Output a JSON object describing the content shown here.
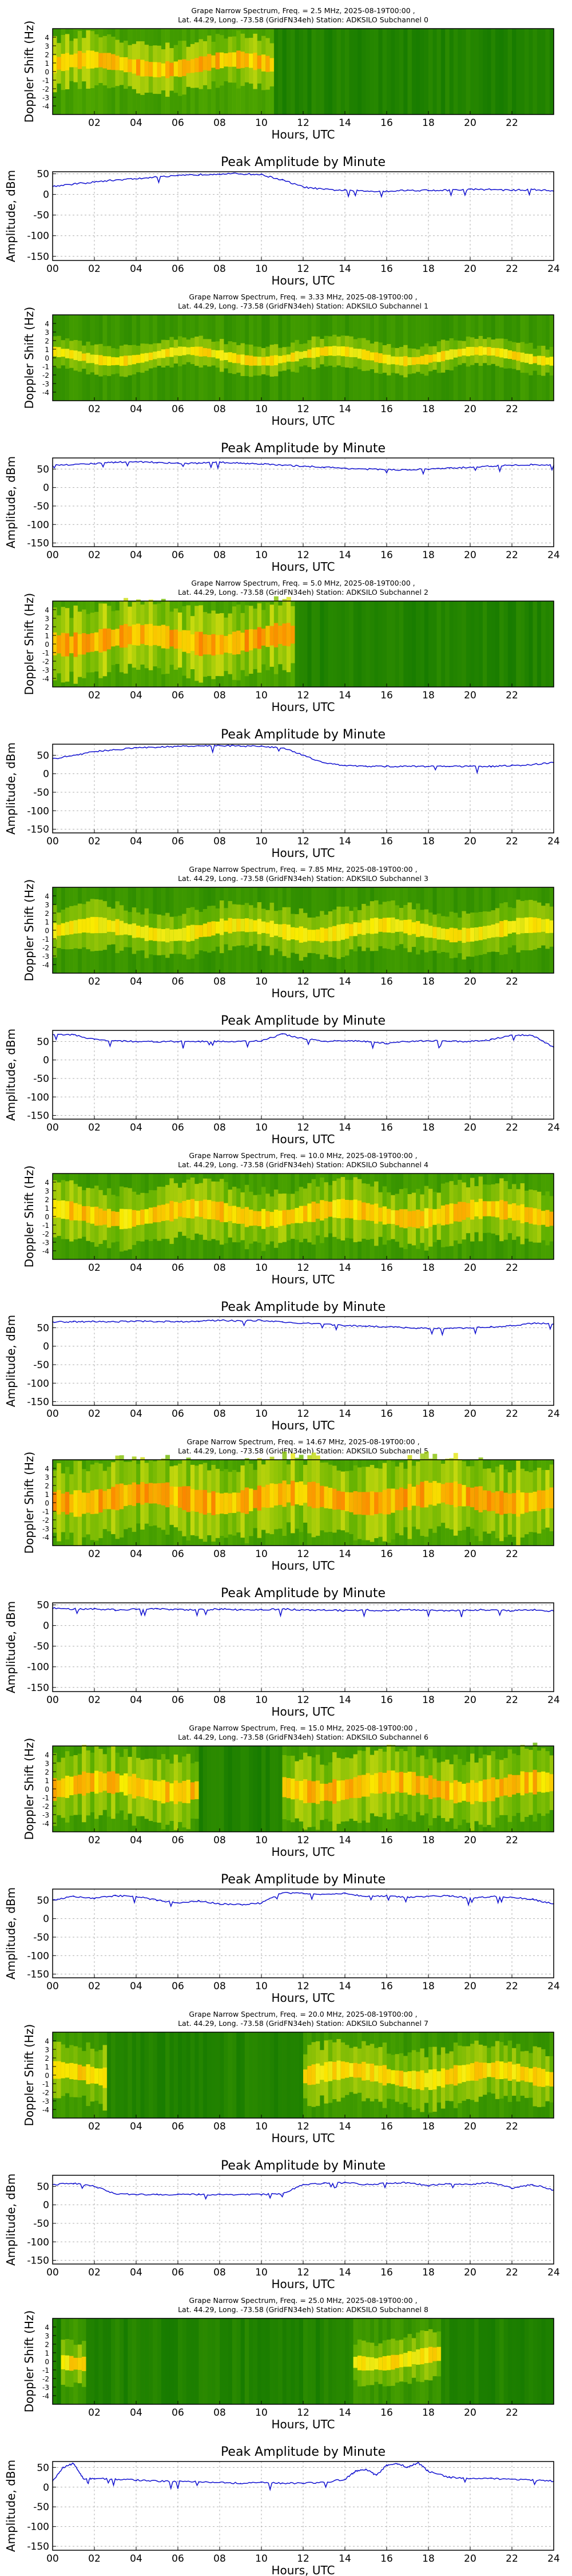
{
  "chart_data": [
    {
      "kind": "spectrum",
      "type": "heatmap",
      "title": "Grape Narrow Spectrum, Freq. = 2.5 MHz, 2025-08-19T00:00 ,",
      "subtitle": "Lat.  44.29, Long. -73.58 (GridFN34eh) Station: ADKSILO Subchannel 0",
      "xlabel": "Hours, UTC",
      "ylabel": "Doppler Shift (Hz)",
      "xticks": [
        "02",
        "04",
        "06",
        "08",
        "10",
        "12",
        "14",
        "16",
        "18",
        "20",
        "22"
      ],
      "yticks": [
        "4",
        "3",
        "2",
        "1",
        "0",
        "-1",
        "-2",
        "-3",
        "-4"
      ],
      "xlim": [
        0,
        24
      ],
      "ylim": [
        -5,
        5
      ],
      "active": [
        [
          0,
          10.5
        ]
      ],
      "activity_level": [
        0.8
      ],
      "band_center": 0.8,
      "band_width": 0.9
    },
    {
      "kind": "amplitude",
      "type": "line",
      "title": "Peak Amplitude by Minute",
      "xlabel": "Hours, UTC",
      "ylabel": "Amplitude, dBm",
      "xlim": [
        0,
        24
      ],
      "ylim": [
        -160,
        55
      ],
      "xticks": [
        "00",
        "02",
        "04",
        "06",
        "08",
        "10",
        "12",
        "14",
        "16",
        "18",
        "20",
        "22",
        "24"
      ],
      "yticks": [
        "50",
        "0",
        "-50",
        "-100",
        "-150"
      ],
      "x": [
        0,
        1,
        2,
        3,
        4,
        5,
        6,
        7,
        8,
        9,
        10,
        11,
        12,
        13,
        14,
        15,
        16,
        17,
        18,
        19,
        20,
        21,
        22,
        23,
        24
      ],
      "y": [
        20,
        25,
        30,
        35,
        38,
        42,
        45,
        48,
        50,
        50,
        48,
        35,
        18,
        12,
        10,
        8,
        8,
        10,
        10,
        10,
        12,
        12,
        10,
        12,
        8
      ]
    },
    {
      "kind": "spectrum",
      "type": "heatmap",
      "title": "Grape Narrow Spectrum, Freq. = 3.33 MHz, 2025-08-19T00:00 ,",
      "subtitle": "Lat.  44.29, Long. -73.58 (GridFN34eh) Station: ADKSILO Subchannel 1",
      "xlabel": "Hours, UTC",
      "ylabel": "Doppler Shift (Hz)",
      "xticks": [
        "02",
        "04",
        "06",
        "08",
        "10",
        "12",
        "14",
        "16",
        "18",
        "20",
        "22"
      ],
      "yticks": [
        "4",
        "3",
        "2",
        "1",
        "0",
        "-1",
        "-2",
        "-3",
        "-4"
      ],
      "xlim": [
        0,
        24
      ],
      "ylim": [
        -5,
        5
      ],
      "active": [
        [
          0,
          24
        ]
      ],
      "activity_level": [
        0.55
      ],
      "band_center": 0.2,
      "band_width": 0.5
    },
    {
      "kind": "amplitude",
      "type": "line",
      "title": "Peak Amplitude by Minute",
      "xlabel": "Hours, UTC",
      "ylabel": "Amplitude, dBm",
      "xlim": [
        0,
        24
      ],
      "ylim": [
        -160,
        80
      ],
      "xticks": [
        "00",
        "02",
        "04",
        "06",
        "08",
        "10",
        "12",
        "14",
        "16",
        "18",
        "20",
        "22",
        "24"
      ],
      "yticks": [
        "50",
        "0",
        "-50",
        "-100",
        "-150"
      ],
      "x": [
        0,
        1,
        2,
        3,
        4,
        5,
        6,
        7,
        8,
        9,
        10,
        11,
        12,
        13,
        14,
        15,
        16,
        17,
        18,
        19,
        20,
        21,
        22,
        23,
        24
      ],
      "y": [
        60,
        62,
        65,
        68,
        70,
        68,
        65,
        66,
        68,
        66,
        64,
        60,
        58,
        55,
        52,
        50,
        48,
        48,
        50,
        52,
        55,
        58,
        60,
        62,
        60
      ]
    },
    {
      "kind": "spectrum",
      "type": "heatmap",
      "title": "Grape Narrow Spectrum, Freq. = 5.0 MHz, 2025-08-19T00:00 ,",
      "subtitle": "Lat.  44.29, Long. -73.58 (GridFN34eh) Station: ADKSILO Subchannel 2",
      "xlabel": "Hours, UTC",
      "ylabel": "Doppler Shift (Hz)",
      "xticks": [
        "02",
        "04",
        "06",
        "08",
        "10",
        "12",
        "14",
        "16",
        "18",
        "20",
        "22"
      ],
      "yticks": [
        "4",
        "3",
        "2",
        "1",
        "0",
        "-1",
        "-2",
        "-3",
        "-4"
      ],
      "xlim": [
        0,
        24
      ],
      "ylim": [
        -5,
        5
      ],
      "active": [
        [
          0,
          11.5
        ]
      ],
      "activity_level": [
        0.9
      ],
      "band_center": 0.5,
      "band_width": 1.2
    },
    {
      "kind": "amplitude",
      "type": "line",
      "title": "Peak Amplitude by Minute",
      "xlabel": "Hours, UTC",
      "ylabel": "Amplitude, dBm",
      "xlim": [
        0,
        24
      ],
      "ylim": [
        -160,
        80
      ],
      "xticks": [
        "00",
        "02",
        "04",
        "06",
        "08",
        "10",
        "12",
        "14",
        "16",
        "18",
        "20",
        "22",
        "24"
      ],
      "yticks": [
        "50",
        "0",
        "-50",
        "-100",
        "-150"
      ],
      "x": [
        0,
        1,
        2,
        3,
        4,
        5,
        6,
        7,
        8,
        9,
        10,
        11,
        12,
        13,
        14,
        15,
        16,
        17,
        18,
        19,
        20,
        21,
        22,
        23,
        24
      ],
      "y": [
        40,
        50,
        60,
        65,
        70,
        72,
        74,
        75,
        76,
        75,
        74,
        70,
        50,
        30,
        22,
        20,
        20,
        20,
        20,
        20,
        20,
        20,
        22,
        25,
        30
      ]
    },
    {
      "kind": "spectrum",
      "type": "heatmap",
      "title": "Grape Narrow Spectrum, Freq. = 7.85 MHz, 2025-08-19T00:00 ,",
      "subtitle": "Lat.  44.29, Long. -73.58 (GridFN34eh) Station: ADKSILO Subchannel 3",
      "xlabel": "Hours, UTC",
      "ylabel": "Doppler Shift (Hz)",
      "xticks": [
        "02",
        "04",
        "06",
        "08",
        "10",
        "12",
        "14",
        "16",
        "18",
        "20",
        "22"
      ],
      "yticks": [
        "4",
        "3",
        "2",
        "1",
        "0",
        "-1",
        "-2",
        "-3",
        "-4"
      ],
      "xlim": [
        0,
        24
      ],
      "ylim": [
        -5,
        5
      ],
      "active": [
        [
          0,
          24
        ]
      ],
      "activity_level": [
        0.5
      ],
      "band_center": 0.0,
      "band_width": 0.8
    },
    {
      "kind": "amplitude",
      "type": "line",
      "title": "Peak Amplitude by Minute",
      "xlabel": "Hours, UTC",
      "ylabel": "Amplitude, dBm",
      "xlim": [
        0,
        24
      ],
      "ylim": [
        -160,
        80
      ],
      "xticks": [
        "00",
        "02",
        "04",
        "06",
        "08",
        "10",
        "12",
        "14",
        "16",
        "18",
        "20",
        "22",
        "24"
      ],
      "yticks": [
        "50",
        "0",
        "-50",
        "-100",
        "-150"
      ],
      "x": [
        0,
        1,
        2,
        3,
        4,
        5,
        6,
        7,
        8,
        9,
        10,
        11,
        12,
        13,
        14,
        15,
        16,
        17,
        18,
        19,
        20,
        21,
        22,
        23,
        24
      ],
      "y": [
        70,
        68,
        55,
        52,
        50,
        50,
        50,
        50,
        50,
        50,
        52,
        70,
        58,
        50,
        52,
        50,
        45,
        50,
        52,
        50,
        50,
        55,
        68,
        66,
        35
      ]
    },
    {
      "kind": "spectrum",
      "type": "heatmap",
      "title": "Grape Narrow Spectrum, Freq. = 10.0 MHz, 2025-08-19T00:00 ,",
      "subtitle": "Lat.  44.29, Long. -73.58 (GridFN34eh) Station: ADKSILO Subchannel 4",
      "xlabel": "Hours, UTC",
      "ylabel": "Doppler Shift (Hz)",
      "xticks": [
        "02",
        "04",
        "06",
        "08",
        "10",
        "12",
        "14",
        "16",
        "18",
        "20",
        "22"
      ],
      "yticks": [
        "4",
        "3",
        "2",
        "1",
        "0",
        "-1",
        "-2",
        "-3",
        "-4"
      ],
      "xlim": [
        0,
        24
      ],
      "ylim": [
        -5,
        5
      ],
      "active": [
        [
          0,
          24
        ]
      ],
      "activity_level": [
        0.7
      ],
      "band_center": 0.3,
      "band_width": 1.0
    },
    {
      "kind": "amplitude",
      "type": "line",
      "title": "Peak Amplitude by Minute",
      "xlabel": "Hours, UTC",
      "ylabel": "Amplitude, dBm",
      "xlim": [
        0,
        24
      ],
      "ylim": [
        -160,
        80
      ],
      "xticks": [
        "00",
        "02",
        "04",
        "06",
        "08",
        "10",
        "12",
        "14",
        "16",
        "18",
        "20",
        "22",
        "24"
      ],
      "yticks": [
        "50",
        "0",
        "-50",
        "-100",
        "-150"
      ],
      "x": [
        0,
        1,
        2,
        3,
        4,
        5,
        6,
        7,
        8,
        9,
        10,
        11,
        12,
        13,
        14,
        15,
        16,
        17,
        18,
        19,
        20,
        21,
        22,
        23,
        24
      ],
      "y": [
        65,
        66,
        67,
        66,
        68,
        67,
        66,
        68,
        70,
        68,
        70,
        65,
        62,
        60,
        55,
        55,
        52,
        50,
        48,
        48,
        50,
        52,
        55,
        62,
        60
      ]
    },
    {
      "kind": "spectrum",
      "type": "heatmap",
      "title": "Grape Narrow Spectrum, Freq. = 14.67 MHz, 2025-08-19T00:00 ,",
      "subtitle": "Lat.  44.29, Long. -73.58 (GridFN34eh) Station: ADKSILO Subchannel 5",
      "xlabel": "Hours, UTC",
      "ylabel": "Doppler Shift (Hz)",
      "xticks": [
        "02",
        "04",
        "06",
        "08",
        "10",
        "12",
        "14",
        "16",
        "18",
        "20",
        "22"
      ],
      "yticks": [
        "4",
        "3",
        "2",
        "1",
        "0",
        "-1",
        "-2",
        "-3",
        "-4"
      ],
      "xlim": [
        0,
        24
      ],
      "ylim": [
        -5,
        5
      ],
      "active": [
        [
          0,
          24
        ]
      ],
      "activity_level": [
        0.85
      ],
      "band_center": 0.5,
      "band_width": 1.3
    },
    {
      "kind": "amplitude",
      "type": "line",
      "title": "Peak Amplitude by Minute",
      "xlabel": "Hours, UTC",
      "ylabel": "Amplitude, dBm",
      "xlim": [
        0,
        24
      ],
      "ylim": [
        -160,
        55
      ],
      "xticks": [
        "00",
        "02",
        "04",
        "06",
        "08",
        "10",
        "12",
        "14",
        "16",
        "18",
        "20",
        "22",
        "24"
      ],
      "yticks": [
        "50",
        "0",
        "-50",
        "-100",
        "-150"
      ],
      "x": [
        0,
        1,
        2,
        3,
        4,
        5,
        6,
        7,
        8,
        9,
        10,
        11,
        12,
        13,
        14,
        15,
        16,
        17,
        18,
        19,
        20,
        21,
        22,
        23,
        24
      ],
      "y": [
        42,
        40,
        40,
        38,
        40,
        40,
        38,
        38,
        40,
        38,
        38,
        40,
        38,
        38,
        36,
        38,
        36,
        38,
        38,
        36,
        38,
        38,
        36,
        38,
        35
      ]
    },
    {
      "kind": "spectrum",
      "type": "heatmap",
      "title": "Grape Narrow Spectrum, Freq. = 15.0 MHz, 2025-08-19T00:00 ,",
      "subtitle": "Lat.  44.29, Long. -73.58 (GridFN34eh) Station: ADKSILO Subchannel 6",
      "xlabel": "Hours, UTC",
      "ylabel": "Doppler Shift (Hz)",
      "xticks": [
        "02",
        "04",
        "06",
        "08",
        "10",
        "12",
        "14",
        "16",
        "18",
        "20",
        "22"
      ],
      "yticks": [
        "4",
        "3",
        "2",
        "1",
        "0",
        "-1",
        "-2",
        "-3",
        "-4"
      ],
      "xlim": [
        0,
        24
      ],
      "ylim": [
        -5,
        5
      ],
      "active": [
        [
          0,
          7
        ],
        [
          11,
          24
        ]
      ],
      "activity_level": [
        0.75,
        0.75
      ],
      "band_center": 0.2,
      "band_width": 1.2
    },
    {
      "kind": "amplitude",
      "type": "line",
      "title": "Peak Amplitude by Minute",
      "xlabel": "Hours, UTC",
      "ylabel": "Amplitude, dBm",
      "xlim": [
        0,
        24
      ],
      "ylim": [
        -160,
        80
      ],
      "xticks": [
        "00",
        "02",
        "04",
        "06",
        "08",
        "10",
        "12",
        "14",
        "16",
        "18",
        "20",
        "22",
        "24"
      ],
      "yticks": [
        "50",
        "0",
        "-50",
        "-100",
        "-150"
      ],
      "x": [
        0,
        1,
        2,
        3,
        4,
        5,
        6,
        7,
        8,
        9,
        10,
        11,
        12,
        13,
        14,
        15,
        16,
        17,
        18,
        19,
        20,
        21,
        22,
        23,
        24
      ],
      "y": [
        50,
        60,
        55,
        62,
        60,
        50,
        42,
        48,
        40,
        38,
        42,
        70,
        68,
        66,
        68,
        60,
        62,
        58,
        60,
        62,
        55,
        60,
        58,
        52,
        40
      ]
    },
    {
      "kind": "spectrum",
      "type": "heatmap",
      "title": "Grape Narrow Spectrum, Freq. = 20.0 MHz, 2025-08-19T00:00 ,",
      "subtitle": "Lat.  44.29, Long. -73.58 (GridFN34eh) Station: ADKSILO Subchannel 7",
      "xlabel": "Hours, UTC",
      "ylabel": "Doppler Shift (Hz)",
      "xticks": [
        "02",
        "04",
        "06",
        "08",
        "10",
        "12",
        "14",
        "16",
        "18",
        "20",
        "22"
      ],
      "yticks": [
        "4",
        "3",
        "2",
        "1",
        "0",
        "-1",
        "-2",
        "-3",
        "-4"
      ],
      "xlim": [
        0,
        24
      ],
      "ylim": [
        -5,
        5
      ],
      "active": [
        [
          0,
          2.5
        ],
        [
          12,
          24
        ]
      ],
      "activity_level": [
        0.65,
        0.6
      ],
      "band_center": 0.0,
      "band_width": 1.0
    },
    {
      "kind": "amplitude",
      "type": "line",
      "title": "Peak Amplitude by Minute",
      "xlabel": "Hours, UTC",
      "ylabel": "Amplitude, dBm",
      "xlim": [
        0,
        24
      ],
      "ylim": [
        -160,
        80
      ],
      "xticks": [
        "00",
        "02",
        "04",
        "06",
        "08",
        "10",
        "12",
        "14",
        "16",
        "18",
        "20",
        "22",
        "24"
      ],
      "yticks": [
        "50",
        "0",
        "-50",
        "-100",
        "-150"
      ],
      "x": [
        0,
        1,
        2,
        3,
        4,
        5,
        6,
        7,
        8,
        9,
        10,
        11,
        12,
        13,
        14,
        15,
        16,
        17,
        18,
        19,
        20,
        21,
        22,
        23,
        24
      ],
      "y": [
        55,
        58,
        50,
        30,
        28,
        28,
        28,
        28,
        28,
        28,
        28,
        30,
        55,
        58,
        60,
        55,
        58,
        60,
        52,
        58,
        55,
        60,
        45,
        55,
        40
      ]
    },
    {
      "kind": "spectrum",
      "type": "heatmap",
      "title": "Grape Narrow Spectrum, Freq. = 25.0 MHz, 2025-08-19T00:00 ,",
      "subtitle": "Lat.  44.29, Long. -73.58 (GridFN34eh) Station: ADKSILO Subchannel 8",
      "xlabel": "Hours, UTC",
      "ylabel": "Doppler Shift (Hz)",
      "xticks": [
        "02",
        "04",
        "06",
        "08",
        "10",
        "12",
        "14",
        "16",
        "18",
        "20",
        "22"
      ],
      "yticks": [
        "4",
        "3",
        "2",
        "1",
        "0",
        "-1",
        "-2",
        "-3",
        "-4"
      ],
      "xlim": [
        0,
        24
      ],
      "ylim": [
        -5,
        5
      ],
      "active": [
        [
          0.5,
          1.5
        ],
        [
          14.5,
          18.5
        ]
      ],
      "activity_level": [
        0.6,
        0.55
      ],
      "band_center": 0.3,
      "band_width": 0.8
    },
    {
      "kind": "amplitude",
      "type": "line",
      "title": "Peak Amplitude by Minute",
      "xlabel": "Hours, UTC",
      "ylabel": "Amplitude, dBm",
      "xlim": [
        0,
        24
      ],
      "ylim": [
        -160,
        65
      ],
      "xticks": [
        "00",
        "02",
        "04",
        "06",
        "08",
        "10",
        "12",
        "14",
        "16",
        "18",
        "20",
        "22",
        "24"
      ],
      "yticks": [
        "50",
        "0",
        "-50",
        "-100",
        "-150"
      ],
      "x": [
        0,
        0.5,
        1,
        1.5,
        2,
        3,
        4,
        5,
        6,
        7,
        8,
        9,
        10,
        11,
        12,
        13,
        14,
        14.5,
        15,
        15.5,
        16,
        16.5,
        17,
        17.5,
        18,
        19,
        20,
        21,
        22,
        23,
        24
      ],
      "y": [
        15,
        50,
        60,
        20,
        22,
        20,
        18,
        15,
        15,
        14,
        12,
        10,
        12,
        10,
        10,
        12,
        20,
        40,
        45,
        30,
        55,
        60,
        50,
        62,
        40,
        25,
        22,
        22,
        20,
        18,
        15
      ]
    }
  ]
}
